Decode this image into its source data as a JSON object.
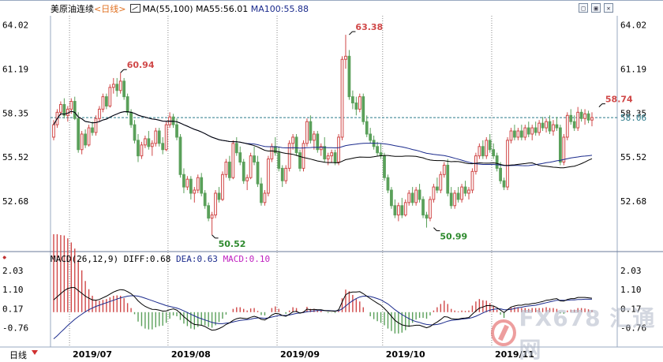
{
  "header": {
    "symbol": "美原油连续",
    "timeframe": "<日线>",
    "ma_label": "MA(55,100)",
    "ma55_label": "MA55:56.01",
    "ma100_label": "MA100:55.88"
  },
  "macd_header": {
    "label": "MACD(26,12,9)",
    "diff": "DIFF:0.68",
    "dea": "DEA:0.63",
    "macd": "MACD:0.10"
  },
  "bottom_tab": "日线",
  "watermark": {
    "text": "FX678 汇通网"
  },
  "colors": {
    "up": "#d04848",
    "down": "#5aa05a",
    "ma55": "#000000",
    "ma100": "#1a2a8c",
    "dea": "#1a2a8c",
    "last_price": "#2a7a8a",
    "hilo_label": "#d04848",
    "low_label": "#2e8a2e"
  },
  "icons": [
    "minimize-icon",
    "maximize-icon",
    "close-icon",
    "chart-cursor-icon",
    "dropdown-arrow-icon"
  ],
  "chart_data": {
    "type": "candlestick",
    "price_axis": {
      "range": [
        49.5,
        64.6
      ],
      "ticks": [
        64.02,
        61.19,
        58.35,
        55.52,
        52.68
      ]
    },
    "last_price": 58.06,
    "x_labels": [
      "2019/07",
      "2019/08",
      "2019/09",
      "2019/10",
      "2019/11"
    ],
    "month_start_index": [
      5,
      33,
      64,
      94,
      125
    ],
    "annotations": [
      {
        "index": 19,
        "value": 60.94,
        "text": "60.94",
        "kind": "high"
      },
      {
        "index": 45,
        "value": 50.52,
        "text": "50.52",
        "kind": "low"
      },
      {
        "index": 84,
        "value": 63.38,
        "text": "63.38",
        "kind": "high"
      },
      {
        "index": 108,
        "value": 50.99,
        "text": "50.99",
        "kind": "low"
      },
      {
        "index": 155,
        "value": 58.74,
        "text": "58.74",
        "kind": "high"
      }
    ],
    "candles": [
      [
        56.8,
        57.9,
        56.6,
        57.6
      ],
      [
        57.6,
        58.6,
        57.4,
        58.4
      ],
      [
        58.4,
        59.1,
        58.2,
        58.9
      ],
      [
        58.9,
        59.3,
        58.0,
        58.2
      ],
      [
        58.2,
        58.8,
        57.8,
        58.6
      ],
      [
        58.6,
        59.3,
        58.3,
        59.1
      ],
      [
        59.1,
        59.4,
        57.9,
        58.0
      ],
      [
        58.0,
        58.4,
        55.8,
        56.0
      ],
      [
        56.0,
        57.2,
        55.7,
        57.0
      ],
      [
        57.0,
        57.3,
        56.1,
        56.3
      ],
      [
        56.3,
        57.6,
        56.2,
        57.4
      ],
      [
        57.4,
        57.8,
        56.9,
        57.1
      ],
      [
        57.1,
        58.2,
        56.9,
        58.0
      ],
      [
        58.0,
        58.8,
        57.8,
        58.6
      ],
      [
        58.6,
        59.6,
        58.4,
        59.4
      ],
      [
        59.4,
        59.6,
        58.6,
        58.8
      ],
      [
        58.8,
        60.2,
        58.7,
        60.0
      ],
      [
        60.0,
        60.6,
        59.6,
        60.2
      ],
      [
        60.2,
        60.6,
        59.4,
        59.8
      ],
      [
        59.8,
        60.94,
        59.6,
        60.4
      ],
      [
        60.4,
        60.6,
        59.2,
        59.4
      ],
      [
        59.4,
        59.6,
        58.2,
        58.4
      ],
      [
        58.4,
        58.6,
        57.4,
        57.6
      ],
      [
        57.6,
        57.9,
        56.4,
        56.6
      ],
      [
        56.6,
        57.0,
        55.2,
        55.6
      ],
      [
        55.6,
        56.5,
        55.4,
        56.3
      ],
      [
        56.3,
        56.9,
        56.1,
        56.7
      ],
      [
        56.7,
        57.2,
        56.0,
        56.2
      ],
      [
        56.2,
        56.6,
        55.6,
        56.4
      ],
      [
        56.4,
        57.4,
        56.2,
        57.2
      ],
      [
        57.2,
        57.4,
        56.2,
        56.4
      ],
      [
        56.4,
        56.8,
        55.7,
        56.0
      ],
      [
        56.0,
        57.8,
        55.9,
        57.6
      ],
      [
        57.6,
        58.4,
        57.4,
        58.1
      ],
      [
        58.1,
        58.3,
        57.4,
        57.6
      ],
      [
        57.6,
        58.0,
        56.6,
        56.8
      ],
      [
        56.8,
        57.0,
        54.2,
        54.4
      ],
      [
        54.4,
        54.8,
        53.2,
        53.6
      ],
      [
        53.6,
        54.3,
        53.4,
        54.1
      ],
      [
        54.1,
        54.3,
        52.8,
        53.2
      ],
      [
        53.2,
        53.6,
        52.6,
        53.4
      ],
      [
        53.4,
        54.4,
        53.2,
        54.2
      ],
      [
        54.2,
        54.5,
        53.0,
        53.2
      ],
      [
        53.2,
        53.4,
        52.2,
        52.4
      ],
      [
        52.4,
        52.6,
        51.4,
        51.6
      ],
      [
        51.6,
        52.0,
        50.52,
        51.8
      ],
      [
        51.8,
        53.4,
        51.6,
        53.2
      ],
      [
        53.2,
        53.6,
        52.6,
        52.8
      ],
      [
        52.8,
        54.6,
        52.7,
        54.4
      ],
      [
        54.4,
        55.4,
        54.2,
        55.2
      ],
      [
        55.2,
        55.6,
        54.0,
        54.2
      ],
      [
        54.2,
        56.6,
        54.1,
        56.4
      ],
      [
        56.4,
        56.8,
        55.6,
        55.8
      ],
      [
        55.8,
        56.2,
        55.0,
        55.2
      ],
      [
        55.2,
        55.4,
        53.8,
        54.0
      ],
      [
        54.0,
        54.4,
        53.4,
        54.2
      ],
      [
        54.2,
        55.8,
        54.1,
        55.6
      ],
      [
        55.6,
        56.2,
        55.0,
        55.2
      ],
      [
        55.2,
        55.6,
        53.6,
        53.8
      ],
      [
        53.8,
        54.2,
        52.4,
        52.6
      ],
      [
        52.6,
        53.4,
        52.4,
        53.2
      ],
      [
        53.2,
        55.6,
        53.0,
        55.4
      ],
      [
        55.4,
        56.4,
        55.2,
        56.2
      ],
      [
        56.2,
        56.8,
        55.6,
        55.8
      ],
      [
        55.8,
        56.2,
        54.6,
        54.8
      ],
      [
        54.8,
        55.0,
        53.6,
        54.0
      ],
      [
        54.0,
        55.0,
        53.8,
        54.8
      ],
      [
        54.8,
        56.6,
        54.6,
        56.4
      ],
      [
        56.4,
        57.0,
        56.0,
        56.8
      ],
      [
        56.8,
        57.0,
        55.6,
        55.8
      ],
      [
        55.8,
        56.0,
        54.6,
        54.8
      ],
      [
        54.8,
        56.6,
        54.6,
        56.4
      ],
      [
        56.4,
        58.0,
        56.2,
        57.8
      ],
      [
        57.8,
        58.2,
        56.4,
        56.6
      ],
      [
        56.6,
        57.2,
        56.0,
        57.0
      ],
      [
        57.0,
        57.2,
        55.8,
        56.0
      ],
      [
        56.0,
        56.4,
        55.6,
        56.2
      ],
      [
        56.2,
        56.8,
        55.2,
        55.4
      ],
      [
        55.4,
        55.8,
        55.0,
        55.6
      ],
      [
        55.6,
        56.0,
        55.2,
        55.8
      ],
      [
        55.8,
        56.0,
        55.0,
        55.2
      ],
      [
        55.2,
        57.0,
        55.0,
        56.8
      ],
      [
        56.8,
        62.0,
        56.6,
        61.8
      ],
      [
        61.8,
        63.38,
        61.2,
        62.0
      ],
      [
        62.0,
        62.4,
        59.2,
        59.4
      ],
      [
        59.4,
        59.8,
        58.6,
        59.0
      ],
      [
        59.0,
        59.4,
        58.2,
        58.6
      ],
      [
        58.6,
        59.6,
        58.4,
        59.4
      ],
      [
        59.4,
        59.6,
        57.6,
        57.8
      ],
      [
        57.8,
        58.2,
        56.8,
        57.0
      ],
      [
        57.0,
        57.4,
        56.4,
        56.6
      ],
      [
        56.6,
        56.9,
        56.0,
        56.2
      ],
      [
        56.2,
        56.5,
        55.6,
        55.8
      ],
      [
        55.8,
        56.4,
        55.4,
        55.6
      ],
      [
        55.6,
        55.8,
        54.0,
        54.2
      ],
      [
        54.2,
        54.4,
        53.2,
        53.4
      ],
      [
        53.4,
        53.6,
        52.2,
        52.4
      ],
      [
        52.4,
        52.8,
        51.6,
        51.8
      ],
      [
        51.8,
        52.6,
        51.4,
        52.4
      ],
      [
        52.4,
        52.9,
        51.6,
        51.8
      ],
      [
        51.8,
        52.8,
        51.7,
        52.6
      ],
      [
        52.6,
        53.4,
        52.4,
        53.2
      ],
      [
        53.2,
        53.6,
        52.4,
        52.6
      ],
      [
        52.6,
        53.6,
        52.4,
        53.4
      ],
      [
        53.4,
        53.8,
        52.6,
        52.8
      ],
      [
        52.8,
        53.0,
        51.6,
        51.8
      ],
      [
        51.8,
        52.0,
        50.99,
        51.6
      ],
      [
        51.6,
        53.0,
        51.4,
        52.8
      ],
      [
        52.8,
        53.8,
        52.6,
        53.6
      ],
      [
        53.6,
        54.2,
        53.2,
        53.4
      ],
      [
        53.4,
        54.6,
        53.2,
        54.4
      ],
      [
        54.4,
        55.2,
        54.2,
        55.0
      ],
      [
        55.0,
        55.4,
        53.0,
        53.2
      ],
      [
        53.2,
        53.6,
        52.2,
        52.4
      ],
      [
        52.4,
        53.4,
        52.2,
        53.2
      ],
      [
        53.2,
        53.6,
        52.6,
        52.8
      ],
      [
        52.8,
        53.8,
        52.6,
        53.6
      ],
      [
        53.6,
        54.0,
        53.0,
        53.2
      ],
      [
        53.2,
        53.6,
        52.8,
        53.4
      ],
      [
        53.4,
        54.8,
        53.2,
        54.6
      ],
      [
        54.6,
        55.8,
        54.4,
        55.6
      ],
      [
        55.6,
        56.4,
        55.4,
        56.2
      ],
      [
        56.2,
        56.6,
        55.4,
        55.6
      ],
      [
        55.6,
        56.8,
        55.4,
        56.6
      ],
      [
        56.6,
        57.0,
        55.8,
        56.0
      ],
      [
        56.0,
        56.4,
        55.4,
        55.6
      ],
      [
        55.6,
        55.8,
        54.6,
        54.8
      ],
      [
        54.8,
        55.2,
        53.8,
        54.0
      ],
      [
        54.0,
        54.2,
        53.4,
        53.6
      ],
      [
        53.6,
        56.8,
        53.4,
        56.6
      ],
      [
        56.6,
        57.4,
        56.4,
        57.2
      ],
      [
        57.2,
        57.6,
        56.6,
        56.8
      ],
      [
        56.8,
        57.4,
        56.6,
        57.2
      ],
      [
        57.2,
        57.6,
        56.6,
        56.8
      ],
      [
        56.8,
        57.6,
        56.6,
        57.4
      ],
      [
        57.4,
        57.8,
        56.8,
        57.0
      ],
      [
        57.0,
        57.6,
        56.6,
        57.4
      ],
      [
        57.4,
        57.8,
        56.9,
        57.1
      ],
      [
        57.1,
        57.9,
        56.9,
        57.7
      ],
      [
        57.7,
        58.1,
        57.2,
        57.4
      ],
      [
        57.4,
        58.0,
        57.1,
        57.8
      ],
      [
        57.8,
        58.2,
        57.0,
        57.2
      ],
      [
        57.2,
        57.9,
        56.9,
        57.6
      ],
      [
        57.6,
        58.1,
        57.2,
        57.4
      ],
      [
        57.4,
        57.6,
        55.0,
        55.2
      ],
      [
        55.2,
        57.0,
        55.0,
        56.8
      ],
      [
        56.8,
        58.4,
        56.6,
        58.2
      ],
      [
        58.2,
        58.6,
        57.6,
        57.8
      ],
      [
        57.8,
        58.2,
        57.2,
        57.4
      ],
      [
        57.4,
        58.74,
        57.2,
        58.4
      ],
      [
        58.4,
        58.6,
        57.8,
        58.0
      ],
      [
        58.0,
        58.6,
        57.6,
        58.3
      ],
      [
        58.3,
        58.5,
        57.7,
        57.9
      ],
      [
        57.9,
        58.4,
        57.5,
        58.06
      ]
    ],
    "macd": {
      "axis": {
        "range": [
          -1.7,
          2.3
        ],
        "ticks": [
          2.03,
          1.1,
          0.17,
          -0.76
        ]
      },
      "diff": [
        0.6,
        0.75,
        0.9,
        1.05,
        1.15,
        1.2,
        1.2,
        1.05,
        0.92,
        0.78,
        0.68,
        0.6,
        0.58,
        0.62,
        0.7,
        0.78,
        0.88,
        0.98,
        1.05,
        1.1,
        1.08,
        1.0,
        0.9,
        0.75,
        0.55,
        0.4,
        0.28,
        0.2,
        0.14,
        0.13,
        0.1,
        0.05,
        0.06,
        0.12,
        0.16,
        0.1,
        -0.05,
        -0.22,
        -0.36,
        -0.5,
        -0.6,
        -0.62,
        -0.64,
        -0.7,
        -0.8,
        -0.88,
        -0.86,
        -0.8,
        -0.72,
        -0.6,
        -0.52,
        -0.4,
        -0.32,
        -0.28,
        -0.3,
        -0.32,
        -0.25,
        -0.2,
        -0.25,
        -0.35,
        -0.38,
        -0.28,
        -0.14,
        -0.06,
        -0.08,
        -0.16,
        -0.2,
        -0.1,
        0.02,
        0.04,
        -0.05,
        0.0,
        0.15,
        0.12,
        0.14,
        0.12,
        0.12,
        0.08,
        0.06,
        0.06,
        0.04,
        0.12,
        0.5,
        0.85,
        0.95,
        0.98,
        0.98,
        1.0,
        0.9,
        0.78,
        0.66,
        0.55,
        0.44,
        0.34,
        0.18,
        0.0,
        -0.2,
        -0.4,
        -0.52,
        -0.62,
        -0.66,
        -0.68,
        -0.66,
        -0.64,
        -0.64,
        -0.7,
        -0.76,
        -0.7,
        -0.58,
        -0.48,
        -0.36,
        -0.22,
        -0.24,
        -0.32,
        -0.34,
        -0.34,
        -0.3,
        -0.29,
        -0.26,
        -0.1,
        0.06,
        0.2,
        0.25,
        0.32,
        0.32,
        0.3,
        0.22,
        0.1,
        -0.02,
        0.12,
        0.25,
        0.3,
        0.34,
        0.34,
        0.38,
        0.38,
        0.42,
        0.44,
        0.48,
        0.52,
        0.58,
        0.6,
        0.64,
        0.66,
        0.55,
        0.54,
        0.62,
        0.66,
        0.66,
        0.72,
        0.72,
        0.72,
        0.7,
        0.68
      ],
      "dea": [
        -1.3,
        -1.15,
        -0.98,
        -0.82,
        -0.65,
        -0.5,
        -0.35,
        -0.22,
        -0.1,
        0.02,
        0.12,
        0.2,
        0.28,
        0.34,
        0.4,
        0.46,
        0.52,
        0.58,
        0.64,
        0.7,
        0.74,
        0.78,
        0.8,
        0.8,
        0.78,
        0.74,
        0.68,
        0.62,
        0.56,
        0.5,
        0.44,
        0.38,
        0.32,
        0.28,
        0.24,
        0.2,
        0.14,
        0.06,
        -0.02,
        -0.1,
        -0.18,
        -0.26,
        -0.32,
        -0.38,
        -0.44,
        -0.5,
        -0.54,
        -0.56,
        -0.56,
        -0.54,
        -0.52,
        -0.48,
        -0.44,
        -0.4,
        -0.38,
        -0.36,
        -0.34,
        -0.3,
        -0.28,
        -0.28,
        -0.3,
        -0.28,
        -0.24,
        -0.2,
        -0.16,
        -0.16,
        -0.16,
        -0.14,
        -0.1,
        -0.06,
        -0.04,
        -0.02,
        0.02,
        0.04,
        0.06,
        0.08,
        0.08,
        0.08,
        0.08,
        0.07,
        0.06,
        0.07,
        0.16,
        0.3,
        0.44,
        0.56,
        0.66,
        0.74,
        0.78,
        0.78,
        0.76,
        0.72,
        0.66,
        0.6,
        0.5,
        0.4,
        0.26,
        0.12,
        0.0,
        -0.12,
        -0.22,
        -0.32,
        -0.4,
        -0.46,
        -0.5,
        -0.56,
        -0.6,
        -0.62,
        -0.62,
        -0.6,
        -0.56,
        -0.5,
        -0.44,
        -0.4,
        -0.38,
        -0.36,
        -0.34,
        -0.32,
        -0.3,
        -0.26,
        -0.2,
        -0.12,
        -0.04,
        0.04,
        0.1,
        0.14,
        0.16,
        0.16,
        0.12,
        0.12,
        0.14,
        0.18,
        0.22,
        0.24,
        0.28,
        0.3,
        0.32,
        0.34,
        0.38,
        0.42,
        0.46,
        0.5,
        0.54,
        0.58,
        0.58,
        0.58,
        0.58,
        0.6,
        0.6,
        0.62,
        0.62,
        0.63,
        0.63,
        0.63
      ]
    }
  }
}
